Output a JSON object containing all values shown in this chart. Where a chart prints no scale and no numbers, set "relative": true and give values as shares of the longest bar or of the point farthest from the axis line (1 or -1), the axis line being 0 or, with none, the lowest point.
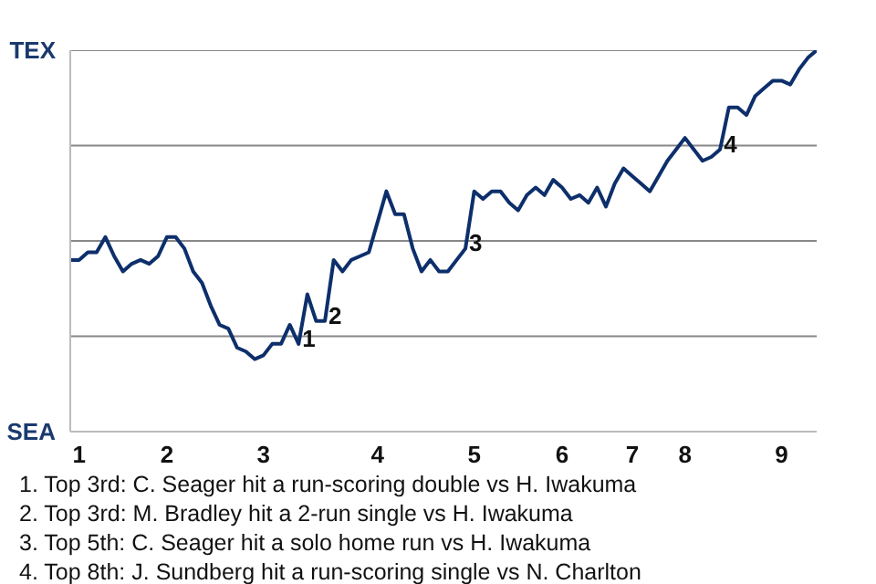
{
  "chart_data": {
    "type": "line",
    "categories": [
      null,
      "1",
      null,
      null,
      null,
      null,
      null,
      null,
      null,
      null,
      null,
      "2",
      null,
      null,
      null,
      null,
      null,
      null,
      null,
      null,
      null,
      null,
      "3",
      null,
      null,
      null,
      null,
      null,
      null,
      null,
      null,
      null,
      null,
      null,
      null,
      "4",
      null,
      null,
      null,
      null,
      null,
      null,
      null,
      null,
      null,
      null,
      "5",
      null,
      null,
      null,
      null,
      null,
      null,
      null,
      null,
      null,
      "6",
      null,
      null,
      null,
      null,
      null,
      null,
      null,
      "7",
      null,
      null,
      null,
      null,
      null,
      "8",
      null,
      null,
      null,
      null,
      null,
      null,
      null,
      null,
      null,
      null,
      "9",
      null,
      null,
      null,
      null
    ],
    "relative": true,
    "series": [
      {
        "color": "#0d2f6b",
        "values": [
          0.45,
          0.45,
          0.47,
          0.47,
          0.51,
          0.46,
          0.42,
          0.44,
          0.45,
          0.44,
          0.46,
          0.51,
          0.51,
          0.48,
          0.42,
          0.39,
          0.33,
          0.28,
          0.27,
          0.22,
          0.21,
          0.19,
          0.2,
          0.23,
          0.23,
          0.28,
          0.23,
          0.36,
          0.29,
          0.29,
          0.45,
          0.42,
          0.45,
          0.46,
          0.47,
          0.55,
          0.63,
          0.57,
          0.57,
          0.48,
          0.42,
          0.45,
          0.42,
          0.42,
          0.45,
          0.48,
          0.63,
          0.61,
          0.63,
          0.63,
          0.6,
          0.58,
          0.62,
          0.64,
          0.62,
          0.66,
          0.64,
          0.61,
          0.62,
          0.6,
          0.64,
          0.59,
          0.65,
          0.69,
          0.67,
          0.65,
          0.63,
          0.67,
          0.71,
          0.74,
          0.77,
          0.74,
          0.71,
          0.72,
          0.74,
          0.85,
          0.85,
          0.83,
          0.88,
          0.9,
          0.92,
          0.92,
          0.91,
          0.95,
          0.98,
          1.0
        ]
      }
    ],
    "marker": "none",
    "line_style": "solid",
    "ref_lines": [
      {
        "axis": "y",
        "value": 0.25,
        "color": "#888888"
      },
      {
        "axis": "y",
        "value": 0.5,
        "color": "#888888"
      },
      {
        "axis": "y",
        "value": 0.75,
        "color": "#888888"
      },
      {
        "axis": "y",
        "value": 1.0,
        "color": "#888888"
      }
    ],
    "annotations": [
      "TEX",
      "SEA",
      {
        "text": "1",
        "y": 0.23
      },
      {
        "text": "2",
        "y": 0.29
      },
      {
        "text": "3",
        "y": 0.48
      },
      {
        "text": "4",
        "y": 0.74
      },
      "1. Top 3rd: C. Seager hit a run-scoring double vs H. Iwakuma",
      "2. Top 3rd: M. Bradley hit a 2-run single vs H. Iwakuma",
      "3. Top 5th: C. Seager hit a solo home run vs H. Iwakuma",
      "4. Top 8th: J. Sundberg hit a run-scoring single vs N. Charlton"
    ]
  }
}
